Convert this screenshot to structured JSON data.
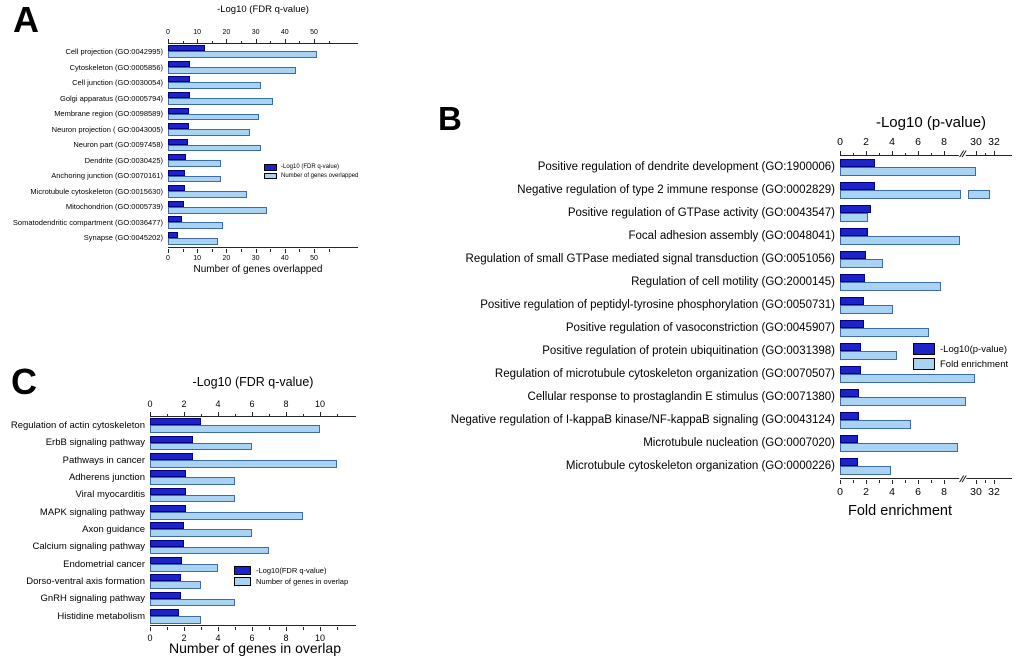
{
  "colors": {
    "dark_bar": "#1c23c8",
    "dark_bar_border": "#000080",
    "light_bar": "#a9d3f2",
    "light_bar_border": "#3d6ba6",
    "axis": "#262626"
  },
  "chart_data": [
    {
      "panel": "A",
      "type": "bar",
      "orientation": "horizontal",
      "title": "-Log10 (FDR q-value)",
      "xlabel": "Number of genes overlapped",
      "x_ticks": [
        "0",
        "10",
        "20",
        "30",
        "40",
        "50"
      ],
      "xlim": [
        0,
        55
      ],
      "grid": false,
      "legend_position": "middle-right",
      "categories": [
        "Cell projection (GO:0042995)",
        "Cytoskeleton (GO:0005856)",
        "Cell junction (GO:0030054)",
        "Golgi apparatus (GO:0005794)",
        "Membrane region (GO:0098589)",
        "Neuron projection ( GO:0043005)",
        "Neuron part (GO:0097458)",
        "Dendrite (GO:0030425)",
        "Anchoring junction (GO:0070161)",
        "Microtubule cytoskeleton (GO:0015630)",
        "Mitochondrion (GO:0005739)",
        "Somatodendritic compartment (GO:0036477)",
        "Synapse (GO:0045202)"
      ],
      "series": [
        {
          "name": "-Log10 (FDR q-value)",
          "color_role": "dark",
          "values": [
            12.7,
            7.7,
            7.6,
            7.4,
            7.2,
            7.1,
            6.7,
            6.1,
            5.7,
            5.7,
            5.4,
            4.8,
            3.4
          ]
        },
        {
          "name": "Number of genes overlapped",
          "color_role": "light",
          "values": [
            51,
            44,
            32,
            36,
            31,
            28,
            32,
            18,
            18,
            27,
            34,
            19,
            17
          ]
        }
      ]
    },
    {
      "panel": "B",
      "type": "bar",
      "orientation": "horizontal",
      "title": "-Log10 (p-value)",
      "xlabel": "Fold enrichment",
      "x_ticks": [
        "0",
        "2",
        "4",
        "6",
        "8",
        "30",
        "32"
      ],
      "axis_break": {
        "between": [
          "8",
          "30"
        ]
      },
      "grid": false,
      "legend_position": "middle-right",
      "categories": [
        "Positive regulation of dendrite development (GO:1900006)",
        "Negative regulation of type 2 immune response (GO:0002829)",
        "Positive regulation of GTPase activity (GO:0043547)",
        "Focal adhesion assembly (GO:0048041)",
        "Regulation of small GTPase mediated signal transduction (GO:0051056)",
        "Regulation of cell motility (GO:2000145)",
        "Positive regulation of peptidyl-tyrosine phosphorylation (GO:0050731)",
        "Positive regulation of vasoconstriction (GO:0045907)",
        "Positive regulation of protein ubiquitination (GO:0031398)",
        "Regulation of microtubule cytoskeleton organization (GO:0070507)",
        "Cellular response to prostaglandin E stimulus (GO:0071380)",
        "Negative regulation of I-kappaB kinase/NF-kappaB signaling (GO:0043124)",
        "Microtubule nucleation (GO:0007020)",
        "Microtubule cytoskeleton organization (GO:0000226)"
      ],
      "series": [
        {
          "name": "-Log10(p-value)",
          "color_role": "dark",
          "values": [
            2.5,
            2.5,
            2.2,
            2.0,
            1.9,
            1.8,
            1.7,
            1.7,
            1.5,
            1.5,
            1.4,
            1.4,
            1.3,
            1.3
          ]
        },
        {
          "name": "Fold enrichment",
          "color_role": "light",
          "values": [
            9.8,
            31.5,
            2.0,
            8.6,
            3.1,
            7.3,
            3.8,
            6.4,
            4.1,
            9.7,
            9.1,
            5.1,
            8.5,
            3.7
          ],
          "break_gap_value": 31.5
        }
      ]
    },
    {
      "panel": "C",
      "type": "bar",
      "orientation": "horizontal",
      "title": "-Log10 (FDR q-value)",
      "xlabel": "Number of genes in overlap",
      "x_ticks": [
        "0",
        "2",
        "4",
        "6",
        "8",
        "10"
      ],
      "xlim": [
        0,
        12
      ],
      "grid": false,
      "legend_position": "middle-right",
      "categories": [
        "Regulation of actin cytoskeleton",
        "ErbB signaling pathway",
        "Pathways in cancer",
        "Adherens junction",
        "Viral myocarditis",
        "MAPK signaling pathway",
        "Axon guidance",
        "Calcium signaling pathway",
        "Endometrial cancer",
        "Dorso-ventral axis formation",
        "GnRH signaling pathway",
        "Histidine metabolism"
      ],
      "series": [
        {
          "name": "-Log10(FDR q-value)",
          "color_role": "dark",
          "values": [
            3.0,
            2.5,
            2.5,
            2.1,
            2.1,
            2.1,
            2.0,
            2.0,
            1.9,
            1.8,
            1.8,
            1.7
          ]
        },
        {
          "name": "Number of genes in overlap",
          "color_role": "light",
          "values": [
            10,
            6,
            11,
            5,
            5,
            9,
            6,
            7,
            4,
            3,
            5,
            3
          ]
        }
      ]
    }
  ]
}
